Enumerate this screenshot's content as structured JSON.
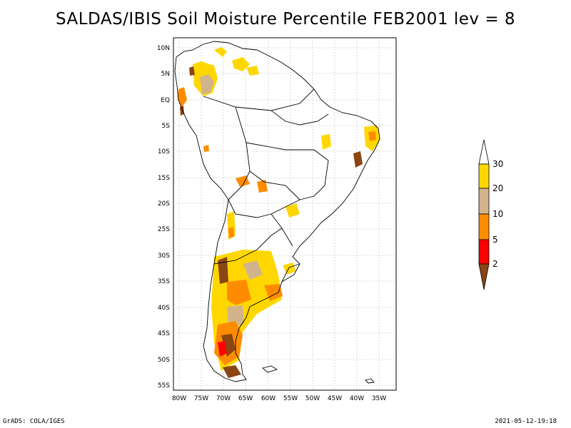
{
  "title": "SALDAS/IBIS Soil Moisture Percentile FEB2001 lev = 8",
  "map": {
    "lat_labels": [
      "10N",
      "5N",
      "EQ",
      "5S",
      "10S",
      "15S",
      "20S",
      "25S",
      "30S",
      "35S",
      "40S",
      "45S",
      "50S",
      "55S"
    ],
    "lon_labels": [
      "80W",
      "75W",
      "70W",
      "65W",
      "60W",
      "55W",
      "50W",
      "45W",
      "40W",
      "35W"
    ]
  },
  "legend": {
    "labels": [
      "30",
      "20",
      "10",
      "5",
      "2"
    ],
    "colors": {
      "above_30": "#ffffff",
      "20_30": "#ffd700",
      "10_20": "#d2b48c",
      "5_10": "#ff8c00",
      "2_5": "#ff0000",
      "below_2": "#8b4513"
    }
  },
  "footer": {
    "left": "GrADS: COLA/IGES",
    "right": "2021-05-12-19:18"
  }
}
